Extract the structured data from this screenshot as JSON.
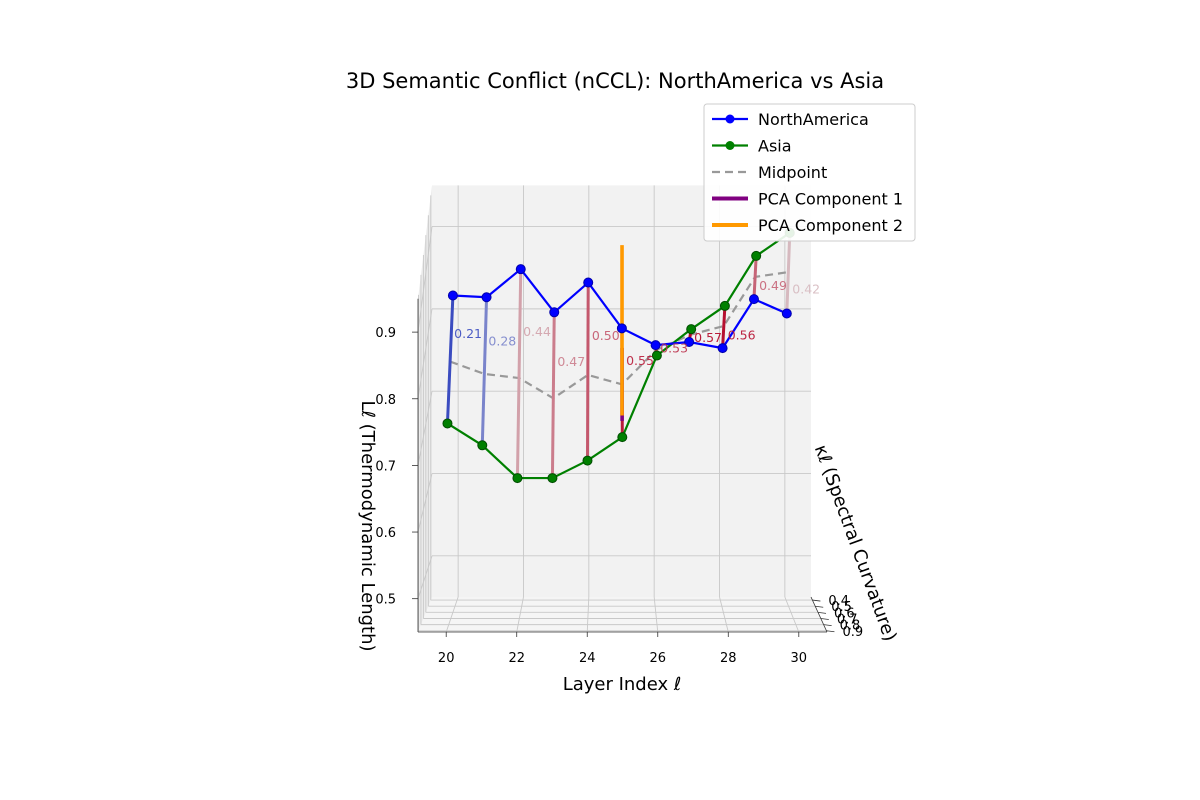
{
  "chart_data": {
    "type": "line",
    "subtype": "3d-line",
    "title": "3D Semantic Conflict (nCCL): NorthAmerica vs Asia",
    "xlabel": "Layer Index ℓ",
    "ylabel": "κℓ (Spectral Curvature)",
    "zlabel": "Lℓ (Thermodynamic Length)",
    "x_ticks": [
      "20",
      "22",
      "24",
      "26",
      "28",
      "30"
    ],
    "y_ticks": [
      "0.4",
      "0.5",
      "0.6",
      "0.7",
      "0.8",
      "0.9"
    ],
    "z_ticks": [
      "0.5",
      "0.6",
      "0.7",
      "0.8",
      "0.9"
    ],
    "xlim": [
      19.2,
      30.8
    ],
    "ylim": [
      0.35,
      0.92
    ],
    "zlim": [
      0.45,
      0.95
    ],
    "grid": true,
    "legend_position": "top-right",
    "colors": {
      "NorthAmerica": "#0000ff",
      "Asia": "#008000",
      "Midpoint": "#999999",
      "PCA Component 1": "#800080",
      "PCA Component 2": "#ff9900"
    },
    "legend": [
      {
        "name": "NorthAmerica",
        "style": "line-marker",
        "color": "#0000ff"
      },
      {
        "name": "Asia",
        "style": "line-marker",
        "color": "#008000"
      },
      {
        "name": "Midpoint",
        "style": "dashed",
        "color": "#999999"
      },
      {
        "name": "PCA Component 1",
        "style": "thick",
        "color": "#800080"
      },
      {
        "name": "PCA Component 2",
        "style": "thick",
        "color": "#ff9900"
      }
    ],
    "series": [
      {
        "name": "NorthAmerica",
        "points": [
          {
            "x": 20,
            "y": 0.6,
            "z": 0.87
          },
          {
            "x": 21,
            "y": 0.61,
            "z": 0.87
          },
          {
            "x": 22,
            "y": 0.58,
            "z": 0.9
          },
          {
            "x": 23,
            "y": 0.61,
            "z": 0.85
          },
          {
            "x": 24,
            "y": 0.57,
            "z": 0.88
          },
          {
            "x": 25,
            "y": 0.57,
            "z": 0.82
          },
          {
            "x": 26,
            "y": 0.58,
            "z": 0.8
          },
          {
            "x": 27,
            "y": 0.56,
            "z": 0.8
          },
          {
            "x": 28,
            "y": 0.55,
            "z": 0.79
          },
          {
            "x": 29,
            "y": 0.44,
            "z": 0.83
          },
          {
            "x": 30,
            "y": 0.43,
            "z": 0.81
          }
        ]
      },
      {
        "name": "Asia",
        "points": [
          {
            "x": 20,
            "y": 0.86,
            "z": 0.75
          },
          {
            "x": 21,
            "y": 0.87,
            "z": 0.72
          },
          {
            "x": 22,
            "y": 0.86,
            "z": 0.67
          },
          {
            "x": 23,
            "y": 0.86,
            "z": 0.67
          },
          {
            "x": 24,
            "y": 0.83,
            "z": 0.69
          },
          {
            "x": 25,
            "y": 0.81,
            "z": 0.72
          },
          {
            "x": 26,
            "y": 0.78,
            "z": 0.83
          },
          {
            "x": 27,
            "y": 0.75,
            "z": 0.86
          },
          {
            "x": 28,
            "y": 0.7,
            "z": 0.88
          },
          {
            "x": 29,
            "y": 0.55,
            "z": 0.91
          },
          {
            "x": 30,
            "y": 0.55,
            "z": 0.94
          }
        ]
      }
    ],
    "distance_labels": [
      "0.21",
      "0.28",
      "0.44",
      "0.47",
      "0.50",
      "0.55",
      "0.53",
      "0.57",
      "0.56",
      "0.49",
      "0.42"
    ],
    "pca_components": [
      {
        "name": "PCA Component 1",
        "x": 25,
        "y": 0.69,
        "z_from": 0.72,
        "z_to": 0.82
      },
      {
        "name": "PCA Component 2",
        "x": 25,
        "y": 0.65,
        "z_from": 0.72,
        "z_to": 0.95
      }
    ]
  }
}
